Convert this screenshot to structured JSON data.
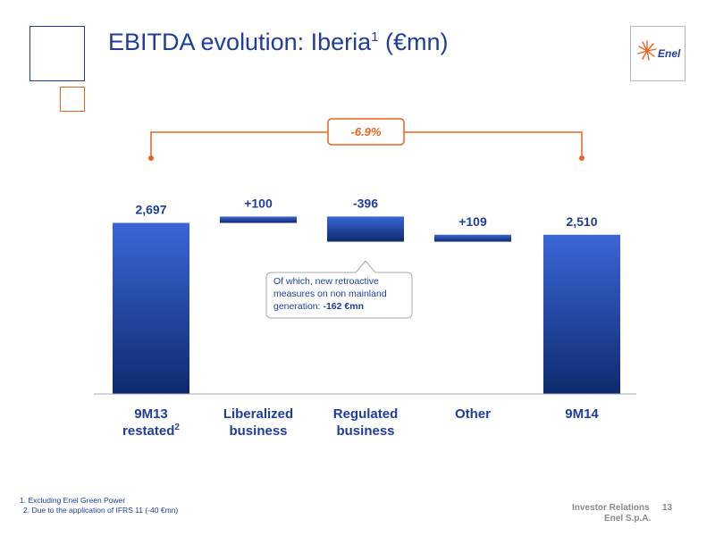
{
  "slide": {
    "title_main": "EBITDA evolution: Iberia",
    "title_sup": "1",
    "title_tail": " (€mn)",
    "logo_text": "Enel",
    "callout": {
      "text": "Of which, new retroactive measures on non mainland generation:",
      "value": "-162  €mn"
    },
    "footnotes": [
      "1. Excluding Enel Green Power",
      "2. Due to the application of IFRS 11 (-40 €mn)"
    ],
    "footer": {
      "department": "Investor Relations",
      "company": "Enel S.p.A.",
      "page": "13"
    }
  },
  "colors": {
    "bar_top": "#3a66d6",
    "bar_bottom": "#0e2a6e",
    "bracket": "#e8641e",
    "text": "#1f3d9c"
  },
  "chart_data": {
    "type": "bar",
    "subtype": "waterfall",
    "categories": [
      "9M13 restated²",
      "Liberalized business",
      "Regulated business",
      "Other",
      "9M14"
    ],
    "category_lines": [
      [
        "9M13",
        "restated²"
      ],
      [
        "Liberalized",
        "business"
      ],
      [
        "Regulated",
        "business"
      ],
      [
        "Other"
      ],
      [
        "9M14"
      ]
    ],
    "values": [
      2697,
      100,
      -396,
      109,
      2510
    ],
    "kinds": [
      "total",
      "delta",
      "delta",
      "delta",
      "total"
    ],
    "data_labels": [
      "2,697",
      "+100",
      "-396",
      "+109",
      "2,510"
    ],
    "change_label": "-6.9%"
  }
}
